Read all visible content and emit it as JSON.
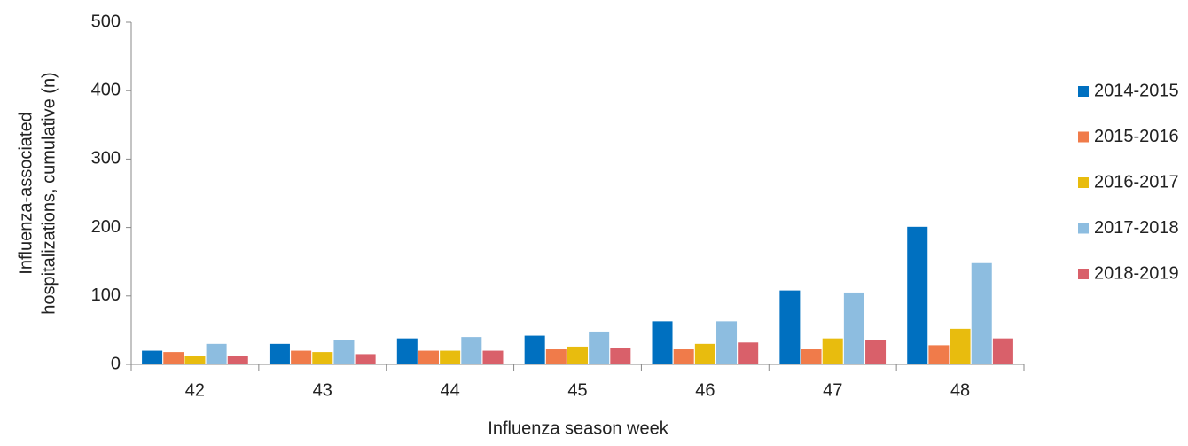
{
  "chart_data": {
    "type": "bar",
    "xlabel": "Influenza season week",
    "ylabel": [
      "Influenza-associated",
      "hospitalizations, cumulative (n)"
    ],
    "categories": [
      "42",
      "43",
      "44",
      "45",
      "46",
      "47",
      "48"
    ],
    "series": [
      {
        "name": "2014-2015",
        "color": "#0070c0",
        "values": [
          20,
          30,
          38,
          42,
          63,
          108,
          201
        ]
      },
      {
        "name": "2015-2016",
        "color": "#f07b4a",
        "values": [
          18,
          20,
          20,
          22,
          22,
          22,
          28
        ]
      },
      {
        "name": "2016-2017",
        "color": "#e8bc0e",
        "values": [
          12,
          18,
          20,
          26,
          30,
          38,
          52
        ]
      },
      {
        "name": "2017-2018",
        "color": "#8dbde0",
        "values": [
          30,
          36,
          40,
          48,
          63,
          105,
          148
        ]
      },
      {
        "name": "2018-2019",
        "color": "#d9606a",
        "values": [
          12,
          15,
          20,
          24,
          32,
          36,
          38
        ]
      }
    ],
    "ylim": [
      0,
      500
    ],
    "yticks": [
      0,
      100,
      200,
      300,
      400,
      500
    ],
    "legend": "right"
  }
}
